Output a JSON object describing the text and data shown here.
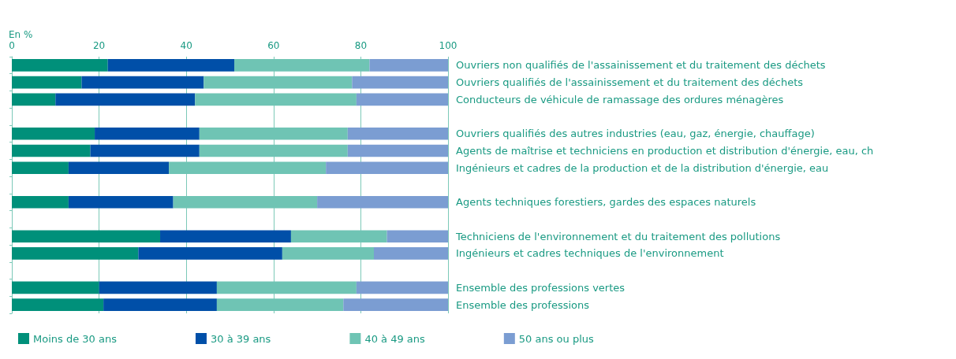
{
  "chart_data": {
    "type": "bar",
    "orientation": "horizontal",
    "stacked": true,
    "xlabel": "En %",
    "categories": [
      "Ouvriers non qualifiés de l'assainissement et du traitement des déchets",
      "Ouvriers qualifiés de l'assainissement et du traitement des déchets",
      "Conducteurs de véhicule de ramassage des ordures ménagères",
      null,
      "Ouvriers qualifiés des autres industries (eau, gaz, énergie, chauffage)",
      "Agents de maîtrise et techniciens en production et distribution d'énergie, eau, ch",
      "Ingénieurs et cadres de la production et de la distribution d'énergie, eau",
      null,
      "Agents techniques forestiers, gardes des espaces naturels",
      null,
      "Techniciens de l'environnement et du traitement des pollutions",
      "Ingénieurs et cadres techniques de l'environnement",
      null,
      "Ensemble des professions vertes",
      "Ensemble des professions"
    ],
    "series": [
      {
        "name": "Moins de 30 ans",
        "color": "#00907a",
        "values": [
          22,
          16,
          10,
          null,
          19,
          18,
          13,
          null,
          13,
          null,
          34,
          29,
          null,
          20,
          21
        ]
      },
      {
        "name": "30 à 39 ans",
        "color": "#004fa8",
        "values": [
          29,
          28,
          32,
          null,
          24,
          25,
          23,
          null,
          24,
          null,
          30,
          33,
          null,
          27,
          26
        ]
      },
      {
        "name": "40 à 49 ans",
        "color": "#6fc4b4",
        "values": [
          31,
          34,
          37,
          null,
          34,
          34,
          36,
          null,
          33,
          null,
          22,
          21,
          null,
          32,
          29
        ]
      },
      {
        "name": "50 ans ou plus",
        "color": "#7b9dd2",
        "values": [
          18,
          22,
          21,
          null,
          23,
          23,
          28,
          null,
          30,
          null,
          14,
          17,
          null,
          21,
          24
        ]
      }
    ],
    "xlim": [
      0,
      100
    ],
    "xticks": [
      0,
      20,
      40,
      60,
      80,
      100
    ],
    "grid": "x",
    "legend": "bottom"
  }
}
